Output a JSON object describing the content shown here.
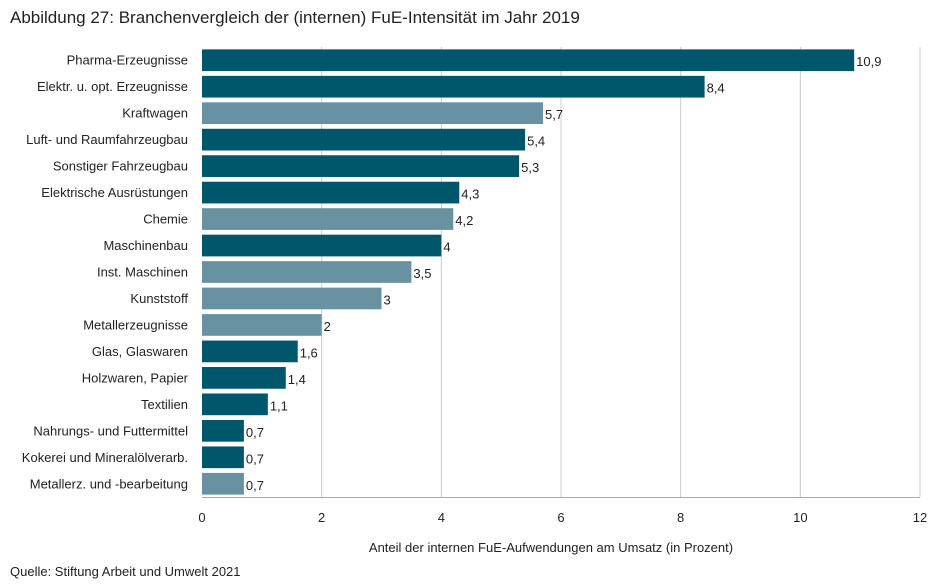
{
  "title": "Abbildung 27: Branchenvergleich der (internen) FuE-Intensität im Jahr 2019",
  "source": "Quelle: Stiftung Arbeit und Umwelt 2021",
  "colors": {
    "dark": "#00566a",
    "light": "#6892a1",
    "grid": "#cccccc",
    "axis": "#aaaaaa"
  },
  "chart_data": {
    "type": "bar",
    "orientation": "horizontal",
    "title": "Abbildung 27: Branchenvergleich der (internen) FuE-Intensität im Jahr 2019",
    "xlabel": "Anteil der internen FuE-Aufwendungen am Umsatz (in Prozent)",
    "ylabel": "",
    "xlim": [
      0,
      12
    ],
    "xticks": [
      0,
      2,
      4,
      6,
      8,
      10,
      12
    ],
    "grid": "vertical",
    "categories": [
      "Pharma-Erzeugnisse",
      "Elektr. u. opt. Erzeugnisse",
      "Kraftwagen",
      "Luft- und Raumfahrzeugbau",
      "Sonstiger Fahrzeugbau",
      "Elektrische Ausrüstungen",
      "Chemie",
      "Maschinenbau",
      "Inst. Maschinen",
      "Kunststoff",
      "Metallerzeugnisse",
      "Glas, Glaswaren",
      "Holzwaren, Papier",
      "Textilien",
      "Nahrungs- und Futtermittel",
      "Kokerei und Mineralölverarb.",
      "Metallerz. und -bearbeitung"
    ],
    "values": [
      10.9,
      8.4,
      5.7,
      5.4,
      5.3,
      4.3,
      4.2,
      4,
      3.5,
      3,
      2,
      1.6,
      1.4,
      1.1,
      0.7,
      0.7,
      0.7
    ],
    "value_labels": [
      "10,9",
      "8,4",
      "5,7",
      "5,4",
      "5,3",
      "4,3",
      "4,2",
      "4",
      "3,5",
      "3",
      "2",
      "1,6",
      "1,4",
      "1,1",
      "0,7",
      "0,7",
      "0,7"
    ],
    "bar_shades": [
      "dark",
      "dark",
      "light",
      "dark",
      "dark",
      "dark",
      "light",
      "dark",
      "light",
      "light",
      "light",
      "dark",
      "dark",
      "dark",
      "dark",
      "dark",
      "light"
    ]
  }
}
